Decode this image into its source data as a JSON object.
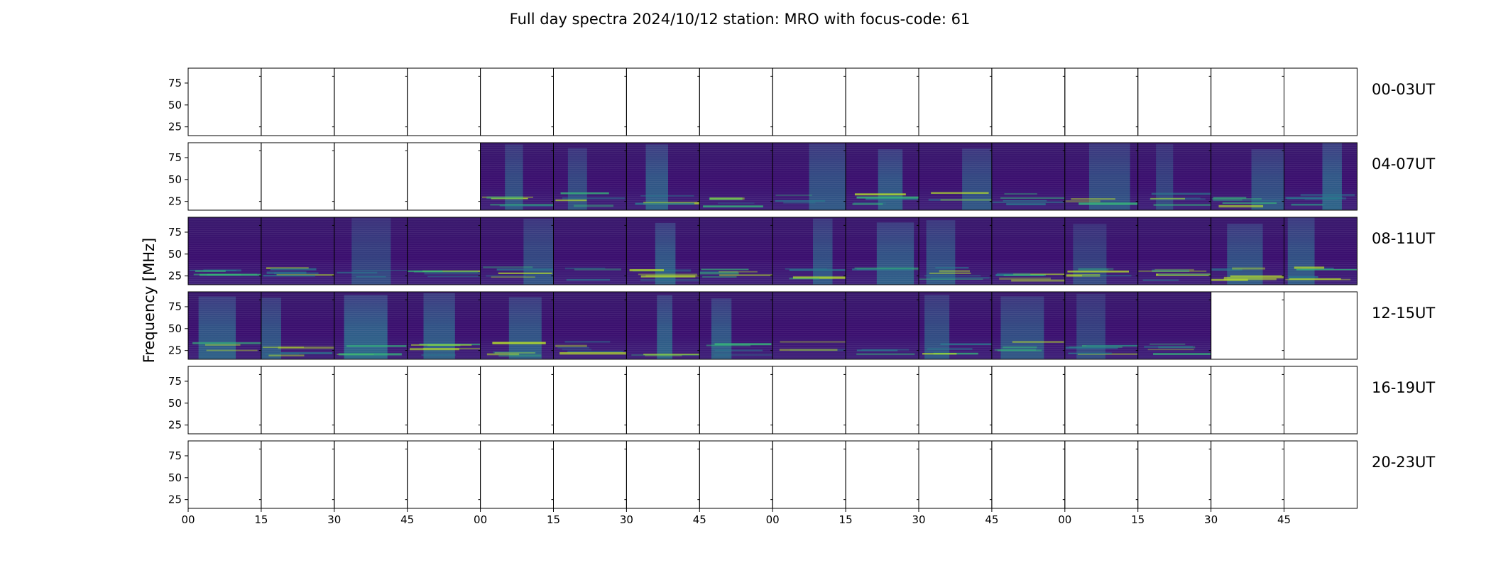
{
  "chart_data": {
    "type": "heatmap",
    "title": "Full day spectra 2024/10/12 station: MRO with focus-code: 61",
    "ylabel": "Frequency [MHz]",
    "xlabel": "",
    "ytick_labels": [
      "75",
      "50",
      "25"
    ],
    "ytick_values": [
      75,
      50,
      25
    ],
    "ylim": [
      15,
      92
    ],
    "xtick_labels": [
      "00",
      "15",
      "30",
      "45",
      "00",
      "15",
      "30",
      "45",
      "00",
      "15",
      "30",
      "45",
      "00",
      "15",
      "30",
      "45"
    ],
    "colormap": "viridis",
    "rows": [
      {
        "label": "00-03UT",
        "panels_with_data": []
      },
      {
        "label": "04-07UT",
        "panels_with_data": [
          4,
          5,
          6,
          7,
          8,
          9,
          10,
          11,
          12,
          13,
          14,
          15
        ]
      },
      {
        "label": "08-11UT",
        "panels_with_data": [
          0,
          1,
          2,
          3,
          4,
          5,
          6,
          7,
          8,
          9,
          10,
          11,
          12,
          13,
          14,
          15
        ]
      },
      {
        "label": "12-15UT",
        "panels_with_data": [
          0,
          1,
          2,
          3,
          4,
          5,
          6,
          7,
          8,
          9,
          10,
          11,
          12,
          13
        ]
      },
      {
        "label": "16-19UT",
        "panels_with_data": []
      },
      {
        "label": "20-23UT",
        "panels_with_data": []
      }
    ]
  },
  "colors": {
    "background_dark": "#3b0f6f",
    "background_mid": "#3e2d7a",
    "band_teal": "#2a788e",
    "band_green": "#35b779",
    "band_yellow": "#b5de2b"
  }
}
